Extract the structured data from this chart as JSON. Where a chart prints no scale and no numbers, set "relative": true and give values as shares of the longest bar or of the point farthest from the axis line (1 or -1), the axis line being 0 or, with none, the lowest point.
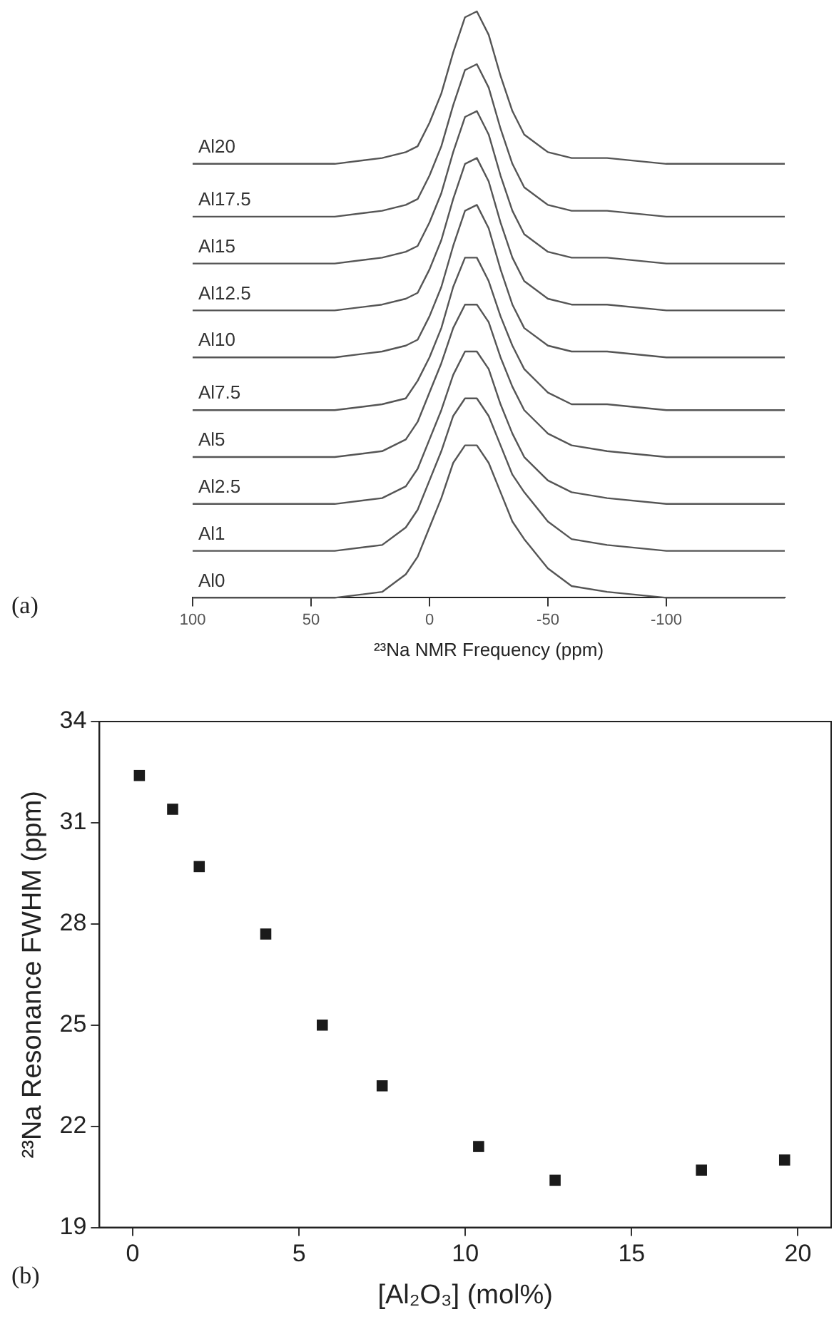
{
  "chart_data": [
    {
      "type": "line",
      "relative": true,
      "xlabel": "²³Na NMR Frequency (ppm)",
      "annotations": [
        "(a)"
      ],
      "xlim": [
        100,
        -150
      ],
      "xticks": [
        100,
        50,
        0,
        -50,
        -100
      ],
      "marker": "none",
      "x": [
        100,
        40,
        20,
        10,
        5,
        0,
        -5,
        -10,
        -15,
        -20,
        -25,
        -30,
        -35,
        -40,
        -50,
        -60,
        -75,
        -100,
        -150
      ],
      "series": [
        {
          "name": "Al0",
          "color": "#555555",
          "values": [
            0,
            0,
            0.01,
            0.04,
            0.07,
            0.12,
            0.17,
            0.23,
            0.26,
            0.26,
            0.23,
            0.18,
            0.13,
            0.1,
            0.05,
            0.02,
            0.01,
            0,
            0
          ]
        },
        {
          "name": "Al1",
          "color": "#555555",
          "values": [
            0.08,
            0.08,
            0.09,
            0.12,
            0.15,
            0.2,
            0.25,
            0.31,
            0.34,
            0.34,
            0.31,
            0.26,
            0.21,
            0.18,
            0.13,
            0.1,
            0.09,
            0.08,
            0.08
          ]
        },
        {
          "name": "Al2.5",
          "color": "#555555",
          "values": [
            0.16,
            0.16,
            0.17,
            0.19,
            0.22,
            0.27,
            0.32,
            0.38,
            0.42,
            0.42,
            0.39,
            0.33,
            0.28,
            0.24,
            0.2,
            0.18,
            0.17,
            0.16,
            0.16
          ]
        },
        {
          "name": "Al5",
          "color": "#555555",
          "values": [
            0.24,
            0.24,
            0.25,
            0.27,
            0.3,
            0.35,
            0.4,
            0.46,
            0.5,
            0.5,
            0.47,
            0.41,
            0.36,
            0.32,
            0.28,
            0.26,
            0.25,
            0.24,
            0.24
          ]
        },
        {
          "name": "Al7.5",
          "color": "#555555",
          "values": [
            0.32,
            0.32,
            0.33,
            0.34,
            0.37,
            0.41,
            0.46,
            0.53,
            0.58,
            0.58,
            0.54,
            0.48,
            0.43,
            0.39,
            0.35,
            0.33,
            0.33,
            0.32,
            0.32
          ]
        },
        {
          "name": "Al10",
          "color": "#555555",
          "values": [
            0.41,
            0.41,
            0.42,
            0.43,
            0.44,
            0.48,
            0.53,
            0.6,
            0.66,
            0.67,
            0.63,
            0.56,
            0.5,
            0.46,
            0.43,
            0.42,
            0.42,
            0.41,
            0.41
          ]
        },
        {
          "name": "Al12.5",
          "color": "#555555",
          "values": [
            0.49,
            0.49,
            0.5,
            0.51,
            0.52,
            0.56,
            0.61,
            0.68,
            0.74,
            0.75,
            0.71,
            0.64,
            0.58,
            0.54,
            0.51,
            0.5,
            0.5,
            0.49,
            0.49
          ]
        },
        {
          "name": "Al15",
          "color": "#555555",
          "values": [
            0.57,
            0.57,
            0.58,
            0.59,
            0.6,
            0.64,
            0.69,
            0.76,
            0.82,
            0.83,
            0.79,
            0.72,
            0.66,
            0.62,
            0.59,
            0.58,
            0.58,
            0.57,
            0.57
          ]
        },
        {
          "name": "Al17.5",
          "color": "#555555",
          "values": [
            0.65,
            0.65,
            0.66,
            0.67,
            0.68,
            0.72,
            0.77,
            0.84,
            0.9,
            0.91,
            0.87,
            0.8,
            0.74,
            0.7,
            0.67,
            0.66,
            0.66,
            0.65,
            0.65
          ]
        },
        {
          "name": "Al20",
          "color": "#555555",
          "values": [
            0.74,
            0.74,
            0.75,
            0.76,
            0.77,
            0.81,
            0.86,
            0.93,
            0.99,
            1,
            0.96,
            0.89,
            0.83,
            0.79,
            0.76,
            0.75,
            0.75,
            0.74,
            0.74
          ]
        }
      ]
    },
    {
      "type": "scatter",
      "xlabel": "[Al₂O₃] (mol%)",
      "ylabel": "²³Na Resonance FWHM (ppm)",
      "annotations": [
        "(b)"
      ],
      "xlim": [
        -1,
        21
      ],
      "xticks": [
        0,
        5,
        10,
        15,
        20
      ],
      "ylim": [
        19,
        34
      ],
      "yticks": [
        19,
        22,
        25,
        28,
        31,
        34
      ],
      "marker": "square",
      "x": [
        0.2,
        1.2,
        2,
        4,
        5.7,
        7.5,
        10.4,
        12.7,
        17.1,
        19.6
      ],
      "series": [
        {
          "color": "#1a1a1a",
          "values": [
            32.4,
            31.4,
            29.7,
            27.7,
            25,
            23.2,
            21.4,
            20.4,
            20.7,
            21
          ]
        }
      ]
    }
  ]
}
